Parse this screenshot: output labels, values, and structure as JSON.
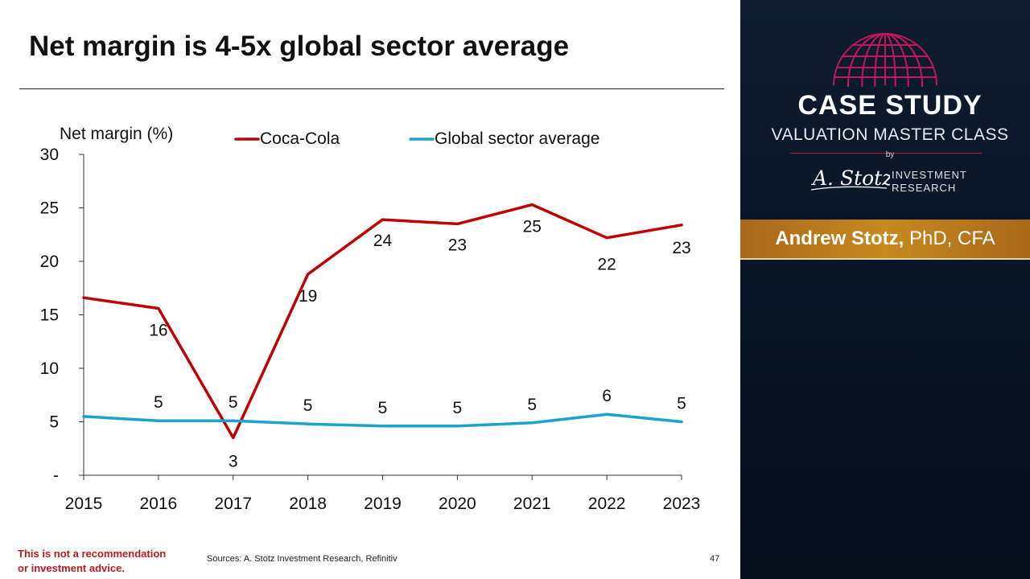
{
  "slide": {
    "title": "Net margin is 4-5x global sector average",
    "disclaimer_line1": "This is not a recommendation",
    "disclaimer_line2": "or investment advice.",
    "sources": "Sources: A. Stotz Investment Research, Refinitiv",
    "page_number": "47"
  },
  "chart_data": {
    "type": "line",
    "title": "",
    "ylabel": "Net margin (%)",
    "xlabel": "",
    "x": [
      "2015",
      "2016",
      "2017",
      "2018",
      "2019",
      "2020",
      "2021",
      "2022",
      "2023"
    ],
    "ylim": [
      0,
      30
    ],
    "yticks": [
      0,
      5,
      10,
      15,
      20,
      25,
      30
    ],
    "ytick_labels": [
      "-",
      "5",
      "10",
      "15",
      "20",
      "25",
      "30"
    ],
    "grid": false,
    "legend_position": "top",
    "series": [
      {
        "name": "Coca-Cola",
        "color": "#c00000",
        "values": [
          16.6,
          15.6,
          3.5,
          18.8,
          23.9,
          23.5,
          25.3,
          22.2,
          23.4
        ],
        "labels": [
          "",
          "16",
          "3",
          "19",
          "24",
          "23",
          "25",
          "22",
          "23"
        ]
      },
      {
        "name": "Global sector average",
        "color": "#1aa3cc",
        "values": [
          5.5,
          5.1,
          5.1,
          4.8,
          4.6,
          4.6,
          4.9,
          5.7,
          5.0
        ],
        "labels": [
          "",
          "5",
          "5",
          "5",
          "5",
          "5",
          "5",
          "6",
          "5"
        ]
      }
    ]
  },
  "branding": {
    "case_title": "CASE STUDY",
    "subtitle": "VALUATION MASTER CLASS",
    "by": "by",
    "signature": "A. Stotz",
    "firm_line1": "INVESTMENT",
    "firm_line2": "RESEARCH",
    "author_name": "Andrew Stotz,",
    "author_creds": " PhD, CFA",
    "globe_color": "#c2185b"
  }
}
